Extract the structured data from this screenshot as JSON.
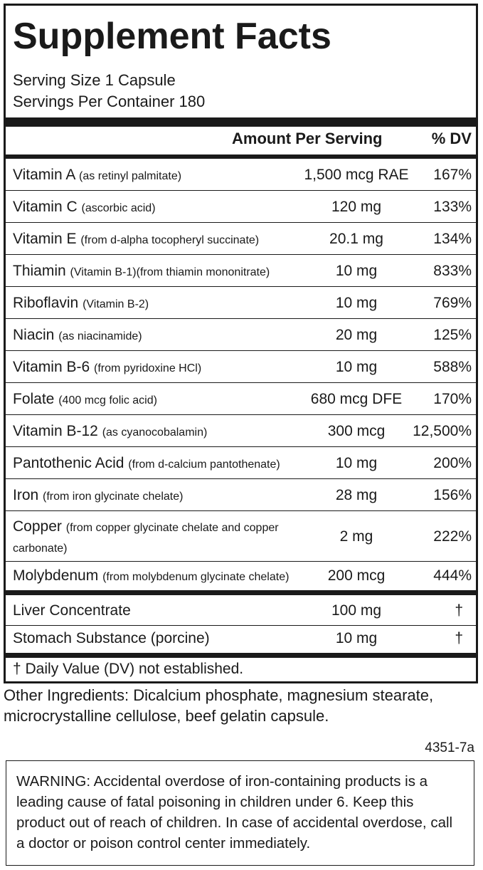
{
  "title": "Supplement Facts",
  "serving_size": "Serving Size 1 Capsule",
  "servings_per_container": "Servings Per Container 180",
  "header": {
    "amount": "Amount Per Serving",
    "dv": "% DV"
  },
  "nutrients": [
    {
      "name": "Vitamin A",
      "source": "(as retinyl palmitate)",
      "amount": "1,500 mcg RAE",
      "dv": "167%"
    },
    {
      "name": "Vitamin C",
      "source": "(ascorbic acid)",
      "amount": "120 mg",
      "dv": "133%"
    },
    {
      "name": "Vitamin E",
      "source": "(from d-alpha tocopheryl succinate)",
      "amount": "20.1 mg",
      "dv": "134%"
    },
    {
      "name": "Thiamin",
      "source": "(Vitamin B-1)(from thiamin mononitrate)",
      "amount": "10 mg",
      "dv": "833%"
    },
    {
      "name": "Riboflavin",
      "source": "(Vitamin B-2)",
      "amount": "10 mg",
      "dv": "769%"
    },
    {
      "name": "Niacin",
      "source": "(as niacinamide)",
      "amount": "20 mg",
      "dv": "125%"
    },
    {
      "name": "Vitamin B-6",
      "source": "(from pyridoxine HCl)",
      "amount": "10 mg",
      "dv": "588%"
    },
    {
      "name": "Folate",
      "source": "(400 mcg folic acid)",
      "amount": "680 mcg DFE",
      "dv": "170%"
    },
    {
      "name": "Vitamin B-12",
      "source": "(as cyanocobalamin)",
      "amount": "300 mcg",
      "dv": "12,500%"
    },
    {
      "name": "Pantothenic Acid",
      "source": "(from d-calcium pantothenate)",
      "amount": "10 mg",
      "dv": "200%"
    },
    {
      "name": "Iron",
      "source": "(from iron glycinate chelate)",
      "amount": "28 mg",
      "dv": "156%"
    },
    {
      "name": "Copper",
      "source": "(from copper glycinate chelate and copper carbonate)",
      "amount": "2 mg",
      "dv": "222%"
    },
    {
      "name": "Molybdenum",
      "source": "(from molybdenum glycinate chelate)",
      "amount": "200 mcg",
      "dv": "444%"
    }
  ],
  "other_nutrients": [
    {
      "name": "Liver Concentrate",
      "amount": "100 mg",
      "dv": "†"
    },
    {
      "name": "Stomach Substance (porcine)",
      "amount": "10 mg",
      "dv": "†"
    }
  ],
  "footnote": "† Daily Value (DV) not established.",
  "other_ingredients": "Other Ingredients: Dicalcium phosphate, magnesium stearate, microcrystalline cellulose, beef gelatin capsule.",
  "product_code": "4351-7a",
  "warning": "WARNING: Accidental overdose of iron-containing products is a leading cause of fatal poisoning in children under 6.  Keep this product out of reach of children.  In case of accidental overdose, call a doctor or poison control center immediately."
}
